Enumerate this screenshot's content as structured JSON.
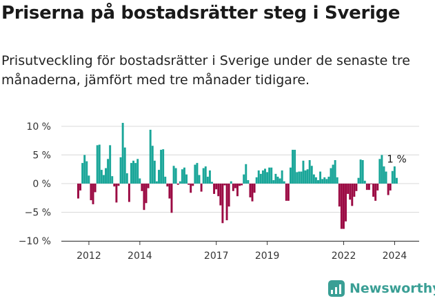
{
  "title": "Priserna på bostadsrätter steg i Sverige",
  "subtitle": "Prisutveckling för bostadsrätter i Sverige under de senaste tre månaderna, jämfört med tre månader tidigare.",
  "brand": {
    "name": "Newsworthy",
    "icon": "newsworthy-logo-icon"
  },
  "chart_data": {
    "type": "bar",
    "x_start": "2011-08",
    "x_step": "month",
    "x_ticks": [
      {
        "label": "2012",
        "date": "2012-01"
      },
      {
        "label": "2014",
        "date": "2014-01"
      },
      {
        "label": "2017",
        "date": "2017-01"
      },
      {
        "label": "2019",
        "date": "2019-01"
      },
      {
        "label": "2022",
        "date": "2022-01"
      },
      {
        "label": "2024",
        "date": "2024-01"
      }
    ],
    "y_ticks": [
      {
        "value": 10,
        "label": "10 %"
      },
      {
        "value": 5,
        "label": "5 %"
      },
      {
        "value": 0,
        "label": "0 %"
      },
      {
        "value": -5,
        "label": "−5 %"
      },
      {
        "value": -10,
        "label": "−10 %"
      }
    ],
    "ylim": [
      -10,
      10
    ],
    "grid": true,
    "colors": {
      "positive": "#1aa699",
      "negative": "#9b0a43",
      "grid": "#d9d9d9",
      "axis": "#333333"
    },
    "annotation": {
      "label": "1 %",
      "target": "last"
    },
    "values": [
      -2.6,
      -1.2,
      3.6,
      5.0,
      3.9,
      1.4,
      -2.9,
      -3.6,
      -1.5,
      6.7,
      6.8,
      2.4,
      1.5,
      2.7,
      4.3,
      6.7,
      1.3,
      -0.5,
      -3.3,
      -0.4,
      4.6,
      10.6,
      6.3,
      1.8,
      -3.2,
      3.6,
      4.0,
      3.6,
      4.3,
      0.9,
      -1.3,
      -4.6,
      -3.4,
      -0.8,
      9.4,
      6.6,
      4.0,
      0.4,
      2.4,
      5.9,
      6.0,
      1.2,
      -0.5,
      -2.6,
      -5.1,
      3.1,
      2.7,
      -0.2,
      0.4,
      2.5,
      2.8,
      1.6,
      -0.2,
      -1.6,
      -0.4,
      3.3,
      3.6,
      1.5,
      -1.4,
      2.7,
      3.0,
      1.2,
      2.3,
      0.3,
      -1.8,
      -1.0,
      -2.2,
      -3.8,
      -6.9,
      -0.3,
      -6.4,
      -4.0,
      0.4,
      -1.3,
      -0.8,
      -2.2,
      -0.4,
      -0.3,
      1.6,
      3.4,
      0.6,
      -2.4,
      -3.1,
      -1.6,
      1.1,
      2.3,
      1.7,
      2.3,
      2.6,
      2.0,
      2.8,
      2.8,
      0.6,
      1.7,
      1.2,
      0.9,
      2.3,
      0.4,
      -3.0,
      -3.0,
      2.8,
      5.9,
      5.9,
      2.0,
      2.1,
      2.1,
      4.0,
      2.3,
      2.5,
      4.1,
      3.1,
      1.6,
      1.1,
      0.6,
      2.1,
      0.8,
      1.1,
      0.8,
      1.2,
      2.7,
      3.3,
      4.1,
      1.1,
      -4.0,
      -7.9,
      -7.9,
      -6.6,
      -1.8,
      -2.8,
      -3.9,
      -2.3,
      -1.3,
      1.0,
      4.2,
      4.1,
      0.5,
      -1.1,
      -1.1,
      -0.1,
      -2.3,
      -3.0,
      -1.2,
      4.3,
      5.0,
      3.0,
      2.1,
      -2.0,
      -1.2,
      2.2,
      3.0,
      1.0
    ]
  }
}
